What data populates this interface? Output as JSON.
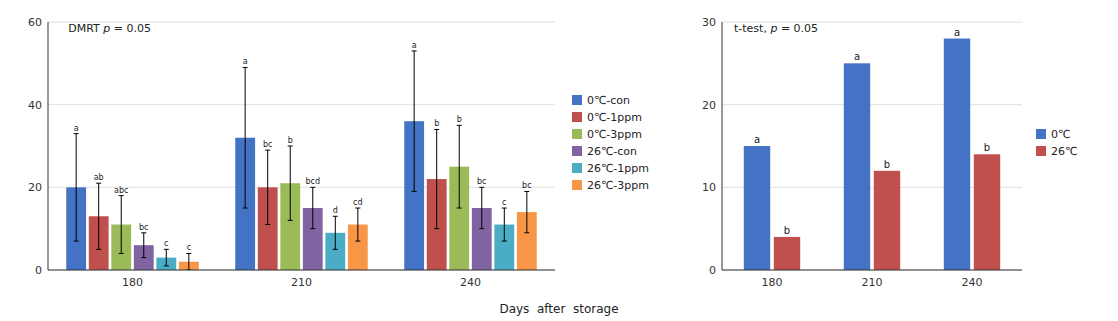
{
  "chart_data": [
    {
      "type": "bar",
      "annotation": "DMRT p = 0.05",
      "xlabel": "Days  after  storage",
      "categories": [
        180,
        210,
        240
      ],
      "series": [
        {
          "name": "0℃-con",
          "color": "#4472C4",
          "values": [
            20,
            32,
            36
          ],
          "errors": [
            13,
            17,
            17
          ],
          "labels": [
            "a",
            "a",
            "a"
          ]
        },
        {
          "name": "0℃-1ppm",
          "color": "#C0504D",
          "values": [
            13,
            20,
            22
          ],
          "errors": [
            8,
            9,
            12
          ],
          "labels": [
            "ab",
            "bc",
            "b"
          ]
        },
        {
          "name": "0℃-3ppm",
          "color": "#9BBB59",
          "values": [
            11,
            21,
            25
          ],
          "errors": [
            7,
            9,
            10
          ],
          "labels": [
            "abc",
            "b",
            "b"
          ]
        },
        {
          "name": "26℃-con",
          "color": "#8064A2",
          "values": [
            6,
            15,
            15
          ],
          "errors": [
            3,
            5,
            5
          ],
          "labels": [
            "bc",
            "bcd",
            "bc"
          ]
        },
        {
          "name": "26℃-1ppm",
          "color": "#4BACC6",
          "values": [
            3,
            9,
            11
          ],
          "errors": [
            2,
            4,
            4
          ],
          "labels": [
            "c",
            "d",
            "c"
          ]
        },
        {
          "name": "26℃-3ppm",
          "color": "#F79646",
          "values": [
            2,
            11,
            14
          ],
          "errors": [
            2,
            4,
            5
          ],
          "labels": [
            "c",
            "cd",
            "bc"
          ]
        }
      ],
      "ylim": [
        0,
        60
      ],
      "yticks": [
        0,
        20,
        40,
        60
      ],
      "grid": true,
      "legend": "right"
    },
    {
      "type": "bar",
      "annotation": "t-test, p = 0.05",
      "categories": [
        180,
        210,
        240
      ],
      "series": [
        {
          "name": "0℃",
          "color": "#4472C4",
          "values": [
            15,
            25,
            28
          ],
          "labels": [
            "a",
            "a",
            "a"
          ]
        },
        {
          "name": "26℃",
          "color": "#C0504D",
          "values": [
            4,
            12,
            14
          ],
          "labels": [
            "b",
            "b",
            "b"
          ]
        }
      ],
      "ylim": [
        0,
        30
      ],
      "yticks": [
        0,
        10,
        20,
        30
      ],
      "grid": true,
      "legend": "right"
    }
  ]
}
